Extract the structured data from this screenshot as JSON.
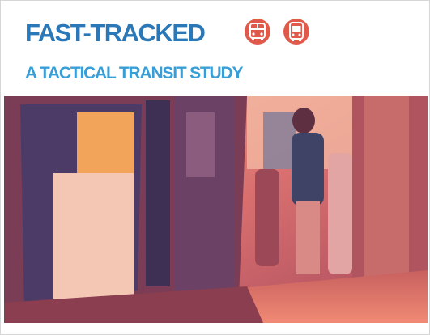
{
  "header": {
    "title": "FAST-TRACKED",
    "subtitle": "A TACTICAL TRANSIT STUDY"
  }
}
